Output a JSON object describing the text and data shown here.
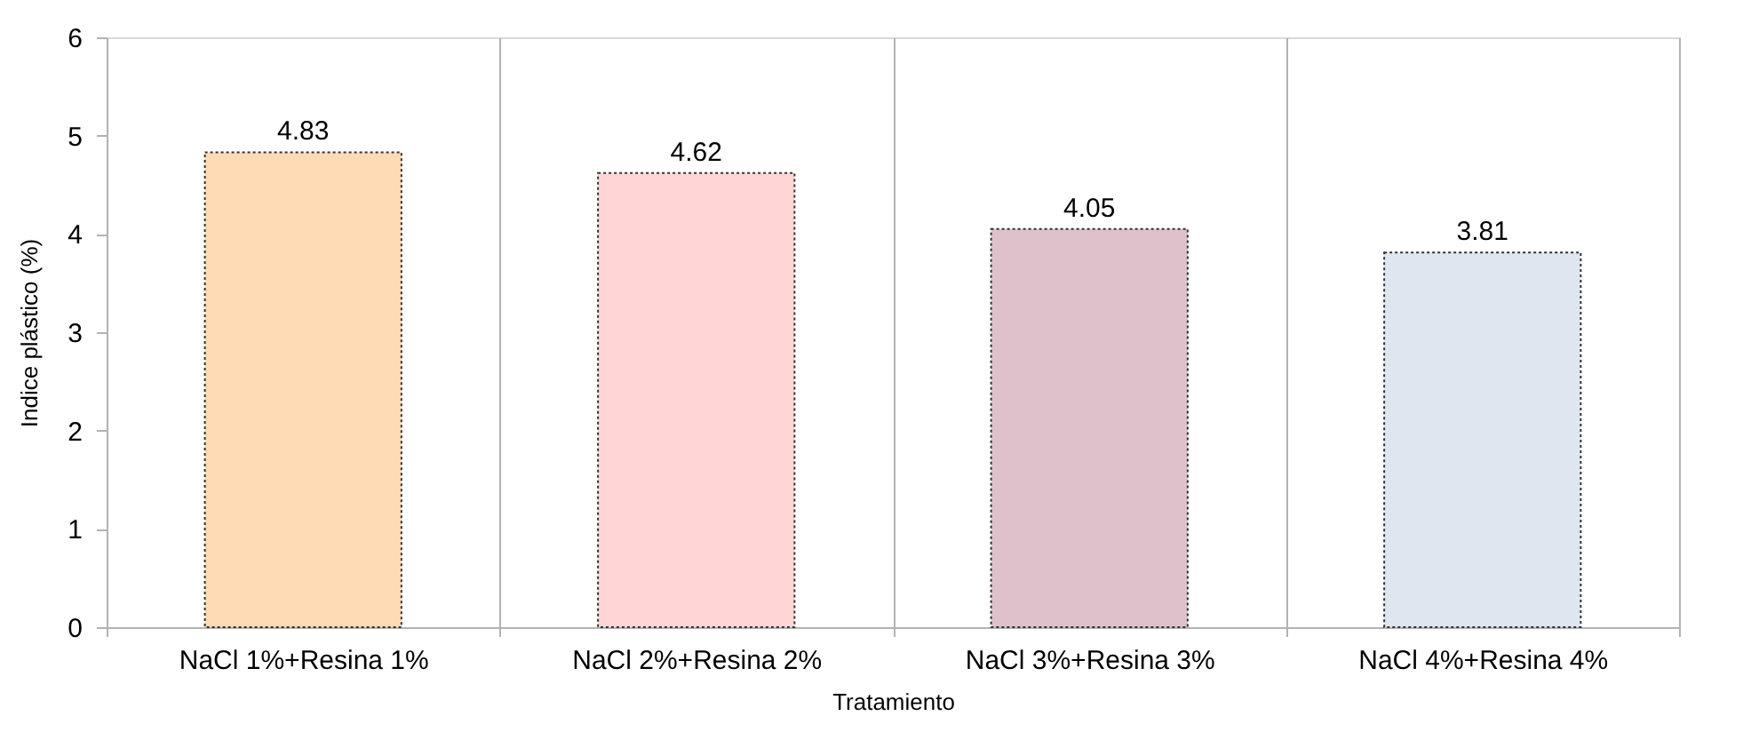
{
  "chart_data": {
    "type": "bar",
    "xlabel": "Tratamiento",
    "ylabel": "Indice plástico (%)",
    "categories": [
      "NaCl 1%+Resina 1%",
      "NaCl 2%+Resina 2%",
      "NaCl 3%+Resina 3%",
      "NaCl 4%+Resina 4%"
    ],
    "values": [
      4.83,
      4.62,
      4.05,
      3.81
    ],
    "colors": [
      "#ffdbb5",
      "#ffd5d6",
      "#dfc1cb",
      "#dee6f0"
    ],
    "ylim": [
      0,
      6
    ],
    "yticks": [
      0,
      1,
      2,
      3,
      4,
      5,
      6
    ],
    "grid": "x",
    "data_labels": true
  }
}
